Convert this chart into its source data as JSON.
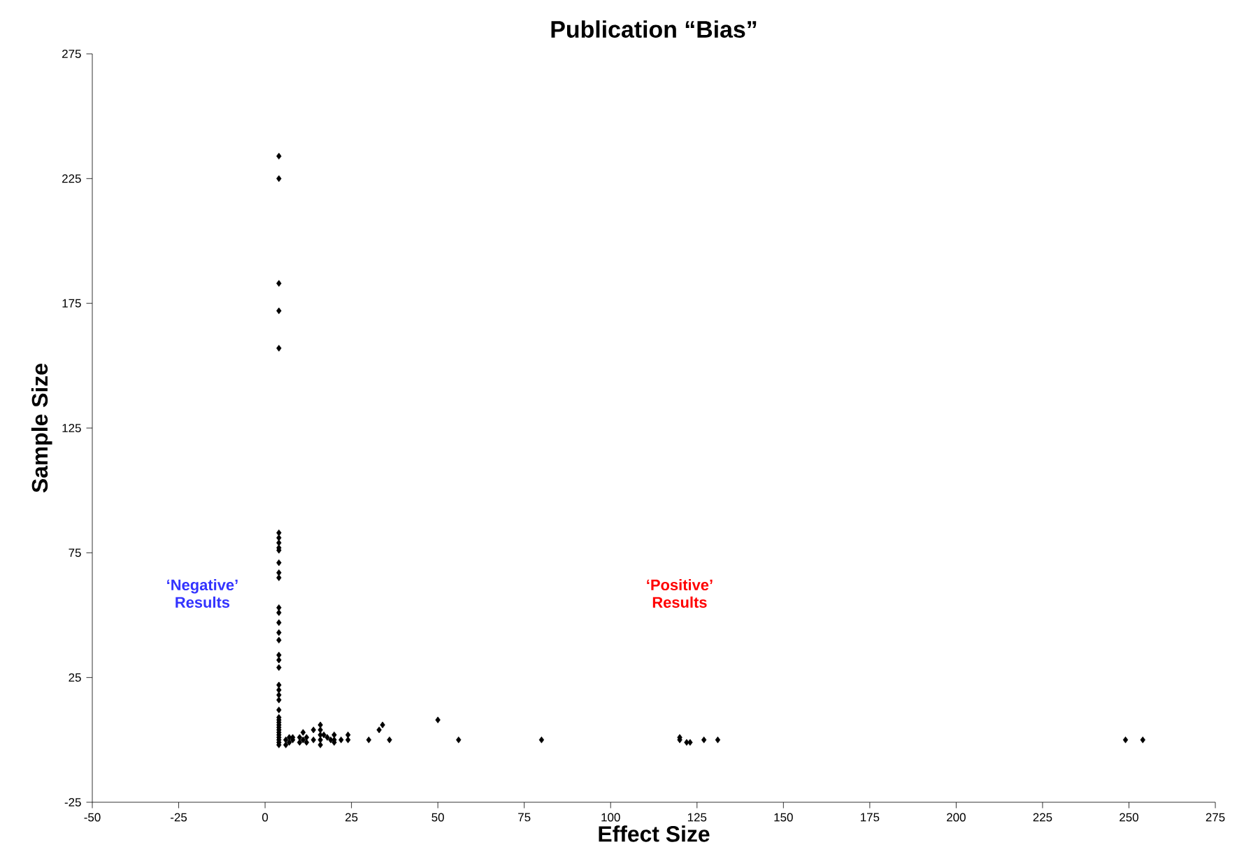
{
  "chart_data": {
    "type": "scatter",
    "title": "Publication  “Bias”",
    "xlabel": "Effect  Size",
    "ylabel": "Sample  Size",
    "annotations": [
      "‘Negative’ Results",
      "‘Positive’ Results"
    ],
    "x": [
      4,
      4,
      4,
      4,
      4,
      4,
      4,
      4,
      4,
      4,
      4,
      4,
      4,
      4,
      4,
      4,
      4,
      4,
      4,
      4,
      4,
      4,
      4,
      4,
      4,
      4,
      4,
      4,
      4,
      4,
      4,
      4,
      4,
      4,
      4,
      4,
      4,
      4,
      6,
      6,
      7,
      7,
      8,
      8,
      10,
      10,
      11,
      11,
      12,
      12,
      14,
      14,
      16,
      16,
      16,
      16,
      16,
      17,
      18,
      19,
      20,
      20,
      20,
      22,
      24,
      24,
      30,
      33,
      34,
      36,
      50,
      56,
      80,
      120,
      120,
      122,
      123,
      127,
      131,
      249,
      254
    ],
    "values": [
      234,
      225,
      183,
      172,
      157,
      83,
      81,
      79,
      77,
      76,
      71,
      67,
      65,
      53,
      51,
      47,
      43,
      40,
      34,
      32,
      29,
      22,
      20,
      18,
      16,
      12,
      9,
      8,
      7,
      6,
      5,
      4,
      3,
      2,
      1,
      0,
      -1,
      -2,
      -2,
      0,
      1,
      -1,
      0,
      1,
      1,
      -1,
      3,
      0,
      1,
      -1,
      4,
      0,
      6,
      4,
      2,
      0,
      -2,
      2,
      1,
      0,
      2,
      0,
      -1,
      0,
      2,
      0,
      0,
      4,
      6,
      0,
      8,
      0,
      0,
      1,
      0,
      -1,
      -1,
      0,
      0,
      0,
      0
    ],
    "color": "#000000",
    "marker": "diamond",
    "grid": false,
    "xlim": [
      -50,
      275
    ],
    "xticks": [
      -50,
      -25,
      0,
      25,
      50,
      75,
      100,
      125,
      150,
      175,
      200,
      225,
      250,
      275
    ],
    "ylim": [
      -25,
      275
    ],
    "yticks": [
      -25,
      25,
      75,
      125,
      175,
      225,
      275
    ]
  }
}
